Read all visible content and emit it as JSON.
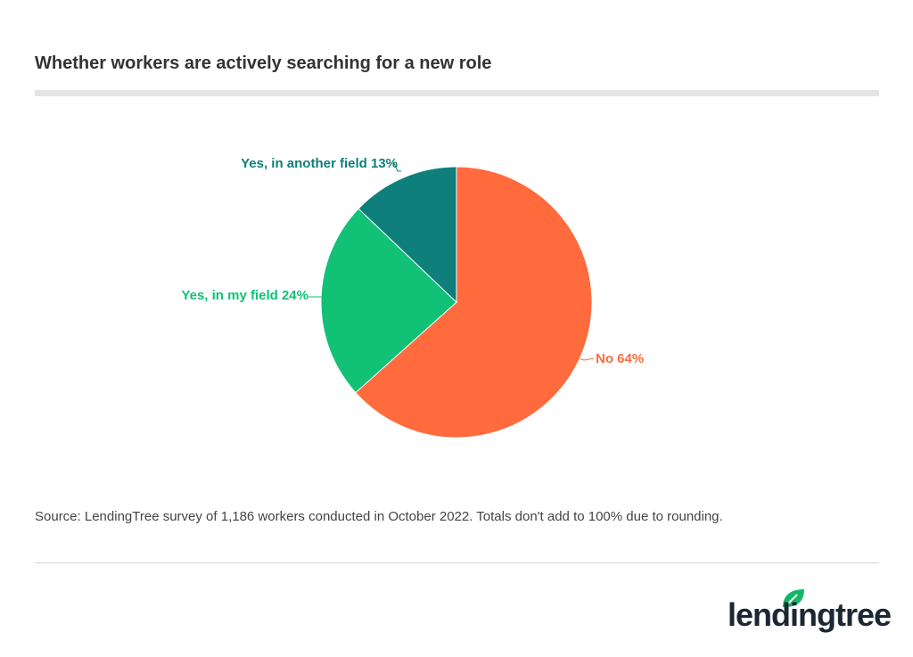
{
  "title": "Whether workers are actively searching for a new role",
  "source": "Source: LendingTree survey of 1,186 workers conducted in October 2022. Totals don't add to 100% due to rounding.",
  "logo": {
    "text": "lendingtree",
    "brand_color": "#12B76A"
  },
  "chart_data": {
    "type": "pie",
    "title": "Whether workers are actively searching for a new role",
    "start": "top",
    "direction": "clockwise",
    "slices": [
      {
        "label": "No",
        "value": 64,
        "display": "No 64%",
        "color": "#FF6B3D"
      },
      {
        "label": "Yes, in my field",
        "value": 24,
        "display": "Yes, in my field 24%",
        "color": "#11C176"
      },
      {
        "label": "Yes, in another field",
        "value": 13,
        "display": "Yes, in another field 13%",
        "color": "#0E7F7A"
      }
    ]
  }
}
